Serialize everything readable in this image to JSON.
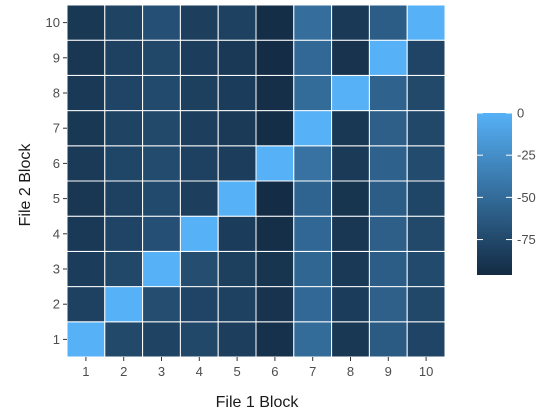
{
  "chart_data": {
    "type": "heatmap",
    "xlabel": "File 1 Block",
    "ylabel": "File 2 Block",
    "x_categories": [
      "1",
      "2",
      "3",
      "4",
      "5",
      "6",
      "7",
      "8",
      "9",
      "10"
    ],
    "y_categories": [
      "1",
      "2",
      "3",
      "4",
      "5",
      "6",
      "7",
      "8",
      "9",
      "10"
    ],
    "values": [
      [
        0,
        -75,
        -79,
        -76,
        -82,
        -92,
        -50,
        -87,
        -62,
        -78
      ],
      [
        -80,
        0,
        -72,
        -78,
        -80,
        -90,
        -52,
        -84,
        -58,
        -76
      ],
      [
        -84,
        -76,
        0,
        -72,
        -81,
        -89,
        -54,
        -86,
        -60,
        -74
      ],
      [
        -86,
        -78,
        -70,
        0,
        -84,
        -93,
        -53,
        -88,
        -59,
        -75
      ],
      [
        -88,
        -80,
        -74,
        -82,
        0,
        -95,
        -55,
        -89,
        -60,
        -77
      ],
      [
        -85,
        -77,
        -73,
        -80,
        -83,
        0,
        -45,
        -85,
        -57,
        -73
      ],
      [
        -87,
        -79,
        -75,
        -82,
        -85,
        -94,
        0,
        -87,
        -59,
        -76
      ],
      [
        -86,
        -78,
        -74,
        -81,
        -84,
        -93,
        -50,
        0,
        -56,
        -75
      ],
      [
        -88,
        -80,
        -76,
        -83,
        -86,
        -95,
        -52,
        -90,
        0,
        -78
      ],
      [
        -87,
        -79,
        -70,
        -82,
        -80,
        -94,
        -48,
        -86,
        -60,
        0
      ]
    ],
    "legend": {
      "ticks": [
        "0",
        "-25",
        "-50",
        "-75"
      ],
      "tick_values": [
        0,
        -25,
        -50,
        -75
      ],
      "range": [
        -96,
        0
      ],
      "placement": "right",
      "low_color": "#132B43",
      "high_color": "#56B1F7"
    },
    "grid_line_color": "#ffffff"
  }
}
